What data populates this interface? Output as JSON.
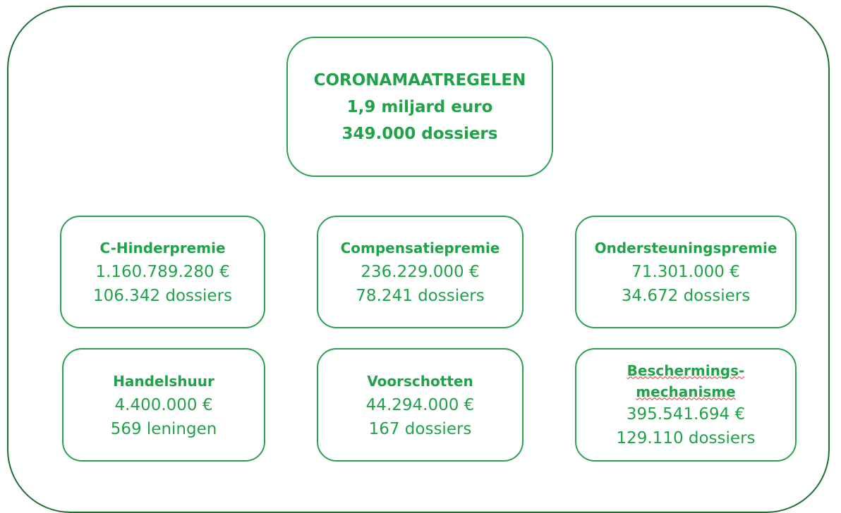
{
  "root": {
    "title": "CORONAMAATREGELEN",
    "amount": "1,9 miljard euro",
    "count": "349.000 dossiers"
  },
  "nodes": [
    {
      "title": [
        "C-Hinderpremie"
      ],
      "amount": "1.160.789.280 €",
      "count": "106.342 dossiers"
    },
    {
      "title": [
        "Compensatiepremie"
      ],
      "amount": "236.229.000 €",
      "count": "78.241 dossiers"
    },
    {
      "title": [
        "Ondersteuningspremie"
      ],
      "amount": "71.301.000 €",
      "count": "34.672 dossiers"
    },
    {
      "title": [
        "Handelshuur"
      ],
      "amount": "4.400.000 €",
      "count": "569 leningen"
    },
    {
      "title": [
        "Voorschotten"
      ],
      "amount": "44.294.000 €",
      "count": "167 dossiers"
    },
    {
      "title": [
        "Beschermings-",
        "mechanisme"
      ],
      "amount": "395.541.694 €",
      "count": "129.110 dossiers"
    }
  ]
}
